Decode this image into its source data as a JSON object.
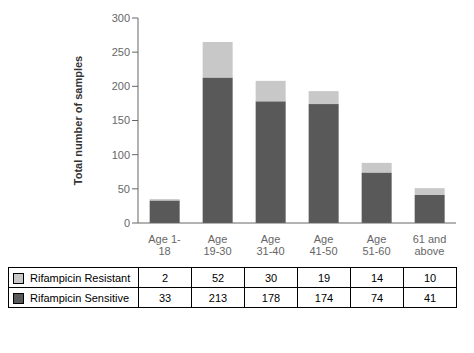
{
  "chart_data": {
    "type": "bar",
    "stacked": true,
    "categories": [
      "Age 1-\n18",
      "Age\n19-30",
      "Age\n31-40",
      "Age\n41-50",
      "Age\n51-60",
      "61 and\nabove"
    ],
    "series": [
      {
        "name": "Rifampicin Sensitive",
        "color": "#595959",
        "values": [
          33,
          213,
          178,
          174,
          74,
          41
        ]
      },
      {
        "name": "Rifampicin Resistant",
        "color": "#c8c8c8",
        "values": [
          2,
          52,
          30,
          19,
          14,
          10
        ]
      }
    ],
    "ylabel": "Total number  of samples",
    "ylim": [
      0,
      300
    ],
    "yticks": [
      0,
      50,
      100,
      150,
      200,
      250,
      300
    ]
  }
}
